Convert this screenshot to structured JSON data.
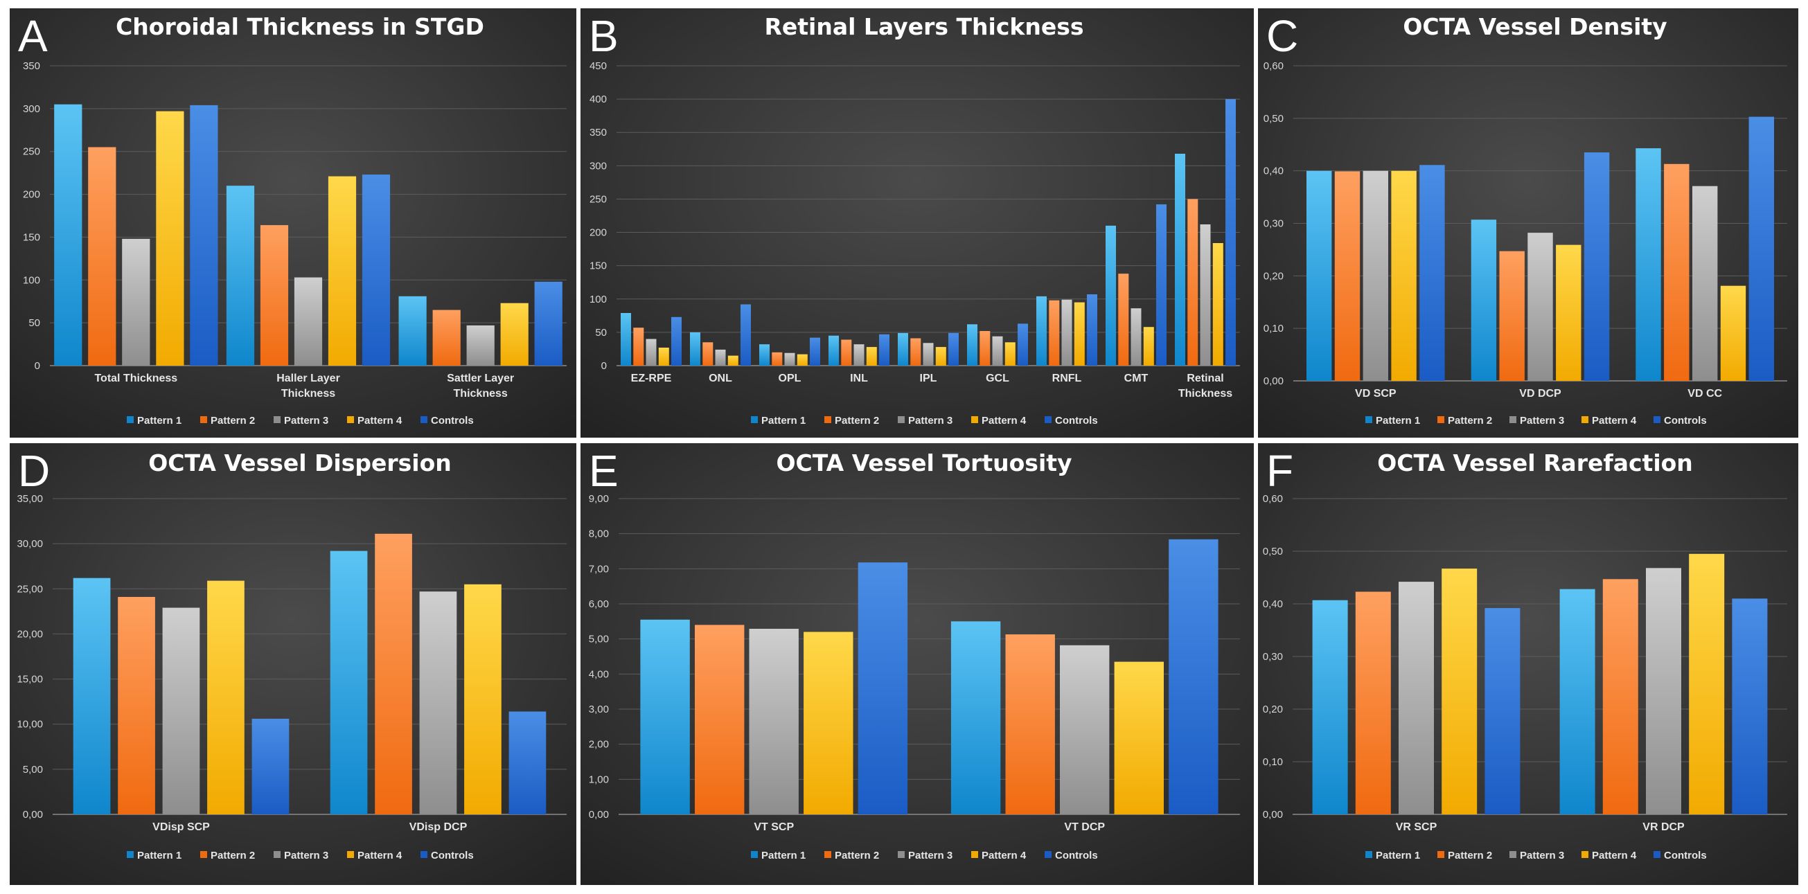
{
  "chart_data": [
    {
      "letter": "A",
      "type": "bar",
      "title": "Choroidal Thickness in STGD",
      "categories": [
        "Total Thickness",
        "Haller Layer Thickness",
        "Sattler Layer Thickness"
      ],
      "category_lines": [
        [
          "Total Thickness"
        ],
        [
          "Haller Layer",
          "Thickness"
        ],
        [
          "Sattler Layer",
          "Thickness"
        ]
      ],
      "ylim": [
        0,
        350
      ],
      "yticks": [
        "0",
        "50",
        "100",
        "150",
        "200",
        "250",
        "300",
        "350"
      ],
      "series": [
        {
          "name": "Pattern 1",
          "values": [
            305,
            210,
            81
          ]
        },
        {
          "name": "Pattern 2",
          "values": [
            255,
            164,
            65
          ]
        },
        {
          "name": "Pattern 3",
          "values": [
            148,
            103,
            47
          ]
        },
        {
          "name": "Pattern 4",
          "values": [
            297,
            221,
            73
          ]
        },
        {
          "name": "Controls",
          "values": [
            304,
            223,
            98
          ]
        }
      ]
    },
    {
      "letter": "B",
      "type": "bar",
      "title": "Retinal Layers Thickness",
      "categories": [
        "EZ-RPE",
        "ONL",
        "OPL",
        "INL",
        "IPL",
        "GCL",
        "RNFL",
        "CMT",
        "Retinal Thickness"
      ],
      "category_lines": [
        [
          "EZ-RPE"
        ],
        [
          "ONL"
        ],
        [
          "OPL"
        ],
        [
          "INL"
        ],
        [
          "IPL"
        ],
        [
          "GCL"
        ],
        [
          "RNFL"
        ],
        [
          "CMT"
        ],
        [
          "Retinal",
          "Thickness"
        ]
      ],
      "ylim": [
        0,
        450
      ],
      "yticks": [
        "0",
        "50",
        "100",
        "150",
        "200",
        "250",
        "300",
        "350",
        "400",
        "450"
      ],
      "series": [
        {
          "name": "Pattern 1",
          "values": [
            79,
            50,
            32,
            45,
            49,
            62,
            104,
            210,
            318
          ]
        },
        {
          "name": "Pattern 2",
          "values": [
            57,
            35,
            20,
            39,
            41,
            52,
            98,
            138,
            250
          ]
        },
        {
          "name": "Pattern 3",
          "values": [
            40,
            24,
            19,
            32,
            34,
            44,
            99,
            86,
            212
          ]
        },
        {
          "name": "Pattern 4",
          "values": [
            27,
            15,
            17,
            28,
            28,
            35,
            95,
            58,
            184
          ]
        },
        {
          "name": "Controls",
          "values": [
            73,
            92,
            42,
            47,
            49,
            63,
            107,
            242,
            400
          ]
        }
      ]
    },
    {
      "letter": "C",
      "type": "bar",
      "title": "OCTA Vessel Density",
      "categories": [
        "VD SCP",
        "VD DCP",
        "VD CC"
      ],
      "category_lines": [
        [
          "VD SCP"
        ],
        [
          "VD DCP"
        ],
        [
          "VD CC"
        ]
      ],
      "ylim": [
        0,
        0.6
      ],
      "yticks": [
        "0,00",
        "0,10",
        "0,20",
        "0,30",
        "0,40",
        "0,50",
        "0,60"
      ],
      "series": [
        {
          "name": "Pattern 1",
          "values": [
            0.4,
            0.307,
            0.443
          ]
        },
        {
          "name": "Pattern 2",
          "values": [
            0.399,
            0.247,
            0.413
          ]
        },
        {
          "name": "Pattern 3",
          "values": [
            0.4,
            0.282,
            0.371
          ]
        },
        {
          "name": "Pattern 4",
          "values": [
            0.4,
            0.259,
            0.181
          ]
        },
        {
          "name": "Controls",
          "values": [
            0.411,
            0.435,
            0.503
          ]
        }
      ]
    },
    {
      "letter": "D",
      "type": "bar",
      "title": "OCTA Vessel Dispersion",
      "categories": [
        "VDisp SCP",
        "VDisp DCP"
      ],
      "category_lines": [
        [
          "VDisp SCP"
        ],
        [
          "VDisp DCP"
        ]
      ],
      "ylim": [
        0,
        35
      ],
      "yticks": [
        "0,00",
        "5,00",
        "10,00",
        "15,00",
        "20,00",
        "25,00",
        "30,00",
        "35,00"
      ],
      "series": [
        {
          "name": "Pattern 1",
          "values": [
            26.2,
            29.2
          ]
        },
        {
          "name": "Pattern 2",
          "values": [
            24.1,
            31.1
          ]
        },
        {
          "name": "Pattern 3",
          "values": [
            22.9,
            24.7
          ]
        },
        {
          "name": "Pattern 4",
          "values": [
            25.9,
            25.5
          ]
        },
        {
          "name": "Controls",
          "values": [
            10.6,
            11.4
          ]
        }
      ]
    },
    {
      "letter": "E",
      "type": "bar",
      "title": "OCTA Vessel Tortuosity",
      "categories": [
        "VT SCP",
        "VT DCP"
      ],
      "category_lines": [
        [
          "VT SCP"
        ],
        [
          "VT DCP"
        ]
      ],
      "ylim": [
        0,
        9
      ],
      "yticks": [
        "0,00",
        "1,00",
        "2,00",
        "3,00",
        "4,00",
        "5,00",
        "6,00",
        "7,00",
        "8,00",
        "9,00"
      ],
      "series": [
        {
          "name": "Pattern 1",
          "values": [
            5.55,
            5.5
          ]
        },
        {
          "name": "Pattern 2",
          "values": [
            5.4,
            5.13
          ]
        },
        {
          "name": "Pattern 3",
          "values": [
            5.29,
            4.82
          ]
        },
        {
          "name": "Pattern 4",
          "values": [
            5.2,
            4.35
          ]
        },
        {
          "name": "Controls",
          "values": [
            7.18,
            7.84
          ]
        }
      ]
    },
    {
      "letter": "F",
      "type": "bar",
      "title": "OCTA Vessel Rarefaction",
      "categories": [
        "VR SCP",
        "VR DCP"
      ],
      "category_lines": [
        [
          "VR SCP"
        ],
        [
          "VR DCP"
        ]
      ],
      "ylim": [
        0,
        0.6
      ],
      "yticks": [
        "0,00",
        "0,10",
        "0,20",
        "0,30",
        "0,40",
        "0,50",
        "0,60"
      ],
      "series": [
        {
          "name": "Pattern 1",
          "values": [
            0.407,
            0.428
          ]
        },
        {
          "name": "Pattern 2",
          "values": [
            0.423,
            0.447
          ]
        },
        {
          "name": "Pattern 3",
          "values": [
            0.442,
            0.468
          ]
        },
        {
          "name": "Pattern 4",
          "values": [
            0.467,
            0.495
          ]
        },
        {
          "name": "Controls",
          "values": [
            0.392,
            0.41
          ]
        }
      ]
    }
  ],
  "series_colors": {
    "Pattern 1": [
      "#5cc4f4",
      "#0f86cc"
    ],
    "Pattern 2": [
      "#ffa060",
      "#f06a10"
    ],
    "Pattern 3": [
      "#cfcfcf",
      "#8e8e8e"
    ],
    "Pattern 4": [
      "#ffd84a",
      "#f2aa00"
    ],
    "Controls": [
      "#4a8ee6",
      "#1a5cc4"
    ]
  }
}
